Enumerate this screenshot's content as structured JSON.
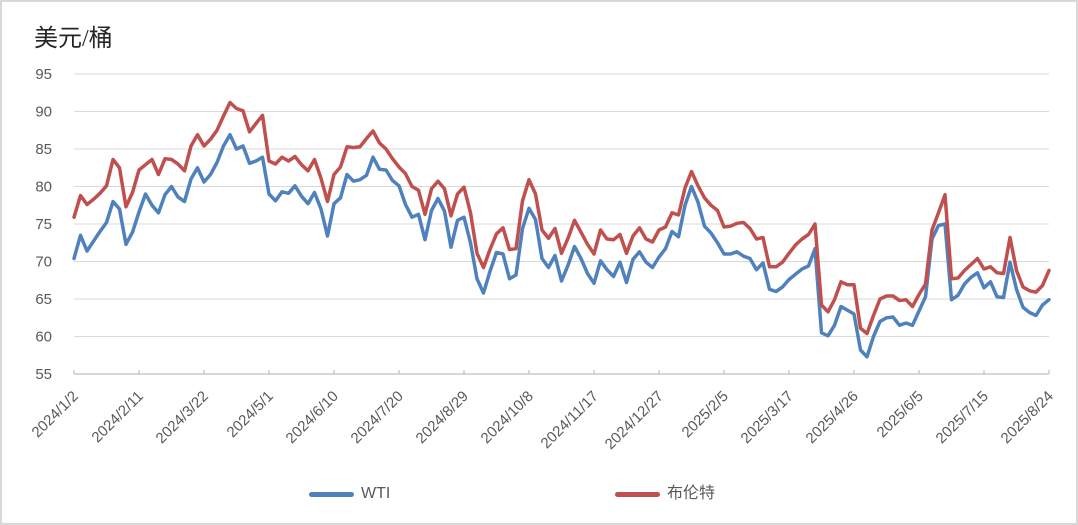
{
  "title": "美元/桶",
  "colors": {
    "wti_blue": "#4F81BD",
    "brent_red": "#C0504D",
    "gridline": "#D9D9D9",
    "axis_line": "#BFBFBF",
    "tick_text": "#595959",
    "title_text": "#262626",
    "frame_border": "#D8D8D8"
  },
  "chart_data": {
    "type": "line",
    "title": "美元/桶",
    "ylabel": "美元/桶",
    "xlabel": "",
    "ylim": [
      55,
      95
    ],
    "y_ticks": [
      55,
      60,
      65,
      70,
      75,
      80,
      85,
      90,
      95
    ],
    "grid": "horizontal",
    "legend_position": "bottom",
    "x_ticks": [
      "2024/1/2",
      "2024/2/11",
      "2024/3/22",
      "2024/5/1",
      "2024/6/10",
      "2024/7/20",
      "2024/8/29",
      "2024/10/8",
      "2024/11/17",
      "2024/12/27",
      "2025/2/5",
      "2025/3/17",
      "2025/4/26",
      "2025/6/5",
      "2025/7/15",
      "2025/8/24"
    ],
    "x": [
      "2024/1/2",
      "2024/1/6",
      "2024/1/10",
      "2024/1/14",
      "2024/1/18",
      "2024/1/22",
      "2024/1/26",
      "2024/1/30",
      "2024/2/3",
      "2024/2/7",
      "2024/2/11",
      "2024/2/15",
      "2024/2/19",
      "2024/2/23",
      "2024/2/27",
      "2024/3/2",
      "2024/3/6",
      "2024/3/10",
      "2024/3/14",
      "2024/3/18",
      "2024/3/22",
      "2024/3/26",
      "2024/3/30",
      "2024/4/3",
      "2024/4/7",
      "2024/4/11",
      "2024/4/15",
      "2024/4/19",
      "2024/4/23",
      "2024/4/27",
      "2024/5/1",
      "2024/5/5",
      "2024/5/9",
      "2024/5/13",
      "2024/5/17",
      "2024/5/21",
      "2024/5/25",
      "2024/5/29",
      "2024/6/2",
      "2024/6/6",
      "2024/6/10",
      "2024/6/14",
      "2024/6/18",
      "2024/6/22",
      "2024/6/26",
      "2024/6/30",
      "2024/7/4",
      "2024/7/8",
      "2024/7/12",
      "2024/7/16",
      "2024/7/20",
      "2024/7/24",
      "2024/7/28",
      "2024/8/1",
      "2024/8/5",
      "2024/8/9",
      "2024/8/13",
      "2024/8/17",
      "2024/8/21",
      "2024/8/25",
      "2024/8/29",
      "2024/9/2",
      "2024/9/6",
      "2024/9/10",
      "2024/9/14",
      "2024/9/18",
      "2024/9/22",
      "2024/9/26",
      "2024/9/30",
      "2024/10/4",
      "2024/10/8",
      "2024/10/12",
      "2024/10/16",
      "2024/10/20",
      "2024/10/24",
      "2024/10/28",
      "2024/11/1",
      "2024/11/5",
      "2024/11/9",
      "2024/11/13",
      "2024/11/17",
      "2024/11/21",
      "2024/11/25",
      "2024/11/29",
      "2024/12/3",
      "2024/12/7",
      "2024/12/11",
      "2024/12/15",
      "2024/12/19",
      "2024/12/23",
      "2024/12/27",
      "2024/12/31",
      "2025/1/4",
      "2025/1/8",
      "2025/1/12",
      "2025/1/16",
      "2025/1/20",
      "2025/1/24",
      "2025/1/28",
      "2025/2/1",
      "2025/2/5",
      "2025/2/9",
      "2025/2/13",
      "2025/2/17",
      "2025/2/21",
      "2025/2/25",
      "2025/3/1",
      "2025/3/5",
      "2025/3/9",
      "2025/3/13",
      "2025/3/17",
      "2025/3/21",
      "2025/3/25",
      "2025/3/29",
      "2025/4/2",
      "2025/4/6",
      "2025/4/10",
      "2025/4/14",
      "2025/4/18",
      "2025/4/22",
      "2025/4/26",
      "2025/4/30",
      "2025/5/4",
      "2025/5/8",
      "2025/5/12",
      "2025/5/16",
      "2025/5/20",
      "2025/5/24",
      "2025/5/28",
      "2025/6/1",
      "2025/6/5",
      "2025/6/9",
      "2025/6/13",
      "2025/6/17",
      "2025/6/21",
      "2025/6/25",
      "2025/6/29",
      "2025/7/3",
      "2025/7/7",
      "2025/7/11",
      "2025/7/15",
      "2025/7/19",
      "2025/7/23",
      "2025/7/27",
      "2025/7/31",
      "2025/8/4",
      "2025/8/8",
      "2025/8/12",
      "2025/8/16",
      "2025/8/20",
      "2025/8/24"
    ],
    "series": [
      {
        "name": "WTI",
        "color": "#4F81BD",
        "values": [
          70.4,
          73.5,
          71.4,
          72.7,
          74.0,
          75.2,
          78.0,
          77.0,
          72.3,
          73.9,
          76.6,
          79.0,
          77.5,
          76.5,
          78.9,
          80.0,
          78.6,
          78.0,
          81.0,
          82.5,
          80.6,
          81.6,
          83.2,
          85.4,
          86.9,
          85.0,
          85.4,
          83.1,
          83.4,
          83.9,
          79.0,
          78.1,
          79.3,
          79.1,
          80.1,
          78.7,
          77.7,
          79.2,
          77.0,
          73.4,
          77.7,
          78.5,
          81.6,
          80.7,
          80.9,
          81.5,
          83.9,
          82.3,
          82.2,
          80.8,
          80.1,
          77.6,
          75.9,
          76.3,
          72.9,
          76.8,
          78.4,
          76.7,
          71.9,
          75.5,
          75.9,
          72.5,
          67.7,
          65.8,
          68.7,
          71.2,
          71.0,
          67.7,
          68.2,
          74.4,
          77.1,
          75.6,
          70.4,
          69.2,
          70.8,
          67.4,
          69.5,
          72.0,
          70.4,
          68.4,
          67.1,
          70.1,
          68.9,
          68.0,
          69.9,
          67.2,
          70.3,
          71.3,
          69.9,
          69.2,
          70.6,
          71.7,
          74.0,
          73.3,
          77.5,
          80.0,
          77.9,
          74.7,
          73.8,
          72.5,
          71.0,
          71.0,
          71.3,
          70.7,
          70.4,
          68.9,
          69.8,
          66.3,
          66.0,
          66.6,
          67.6,
          68.3,
          69.0,
          69.4,
          71.7,
          60.5,
          60.1,
          61.5,
          64.0,
          63.5,
          63.0,
          58.2,
          57.3,
          60.0,
          62.0,
          62.5,
          62.6,
          61.5,
          61.8,
          61.5,
          63.4,
          65.3,
          73.0,
          74.8,
          75.0,
          64.9,
          65.5,
          67.0,
          67.9,
          68.5,
          66.5,
          67.3,
          65.3,
          65.2,
          69.9,
          66.3,
          63.9,
          63.2,
          62.8,
          64.2,
          64.9
        ]
      },
      {
        "name": "布伦特",
        "color": "#C0504D",
        "values": [
          75.9,
          78.8,
          77.6,
          78.3,
          79.1,
          80.1,
          83.6,
          82.5,
          77.3,
          79.2,
          82.2,
          82.9,
          83.6,
          81.6,
          83.7,
          83.6,
          83.0,
          82.1,
          85.4,
          86.9,
          85.4,
          86.3,
          87.5,
          89.4,
          91.2,
          90.4,
          90.1,
          87.3,
          88.4,
          89.5,
          83.4,
          83.0,
          83.9,
          83.4,
          84.0,
          82.9,
          82.1,
          83.6,
          81.1,
          78.0,
          81.6,
          82.6,
          85.3,
          85.2,
          85.3,
          86.4,
          87.4,
          85.8,
          85.0,
          83.7,
          82.6,
          81.7,
          80.0,
          79.5,
          76.3,
          79.7,
          80.7,
          79.7,
          76.1,
          79.0,
          79.9,
          76.5,
          71.1,
          69.2,
          71.6,
          73.7,
          74.5,
          71.6,
          71.7,
          78.1,
          80.9,
          79.0,
          74.2,
          73.1,
          74.4,
          71.1,
          73.1,
          75.5,
          73.9,
          72.3,
          71.0,
          74.2,
          73.0,
          72.9,
          73.6,
          71.1,
          73.4,
          74.5,
          73.0,
          72.6,
          74.2,
          74.6,
          76.5,
          76.2,
          79.8,
          82.0,
          80.1,
          78.5,
          77.5,
          76.8,
          74.6,
          74.7,
          75.1,
          75.2,
          74.4,
          73.0,
          73.2,
          69.3,
          69.3,
          69.9,
          71.1,
          72.2,
          73.0,
          73.6,
          75.0,
          64.2,
          63.3,
          64.9,
          67.3,
          66.9,
          66.9,
          61.1,
          60.4,
          62.8,
          65.0,
          65.4,
          65.4,
          64.8,
          64.9,
          64.0,
          65.6,
          67.0,
          74.2,
          76.5,
          78.9,
          67.7,
          67.8,
          68.8,
          69.6,
          70.4,
          69.0,
          69.3,
          68.5,
          68.4,
          73.2,
          68.8,
          66.6,
          66.1,
          65.9,
          66.8,
          68.8
        ]
      }
    ]
  }
}
